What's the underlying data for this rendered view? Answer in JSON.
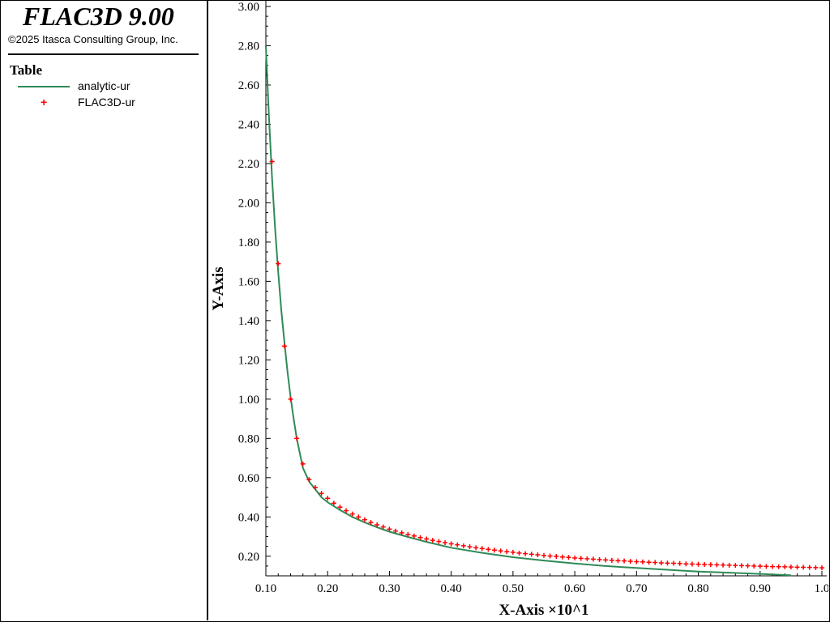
{
  "app": {
    "title": "FLAC3D 9.00",
    "copyright": "©2025 Itasca Consulting Group, Inc."
  },
  "legend": {
    "title": "Table",
    "items": [
      {
        "label": "analytic-ur",
        "style": "line",
        "color": "#2e8b57"
      },
      {
        "label": "FLAC3D-ur",
        "style": "plus",
        "color": "#ff0000"
      }
    ]
  },
  "chart_data": {
    "type": "line",
    "xlabel": "X-Axis ×10^1",
    "ylabel": "Y-Axis",
    "xlim": [
      0.1,
      1.0
    ],
    "ylim": [
      0.1,
      3.0
    ],
    "x_ticks": [
      "0.10",
      "0.20",
      "0.30",
      "0.40",
      "0.50",
      "0.60",
      "0.70",
      "0.80",
      "0.90",
      "1.0"
    ],
    "y_ticks": [
      "0.20",
      "0.40",
      "0.60",
      "0.80",
      "1.00",
      "1.20",
      "1.40",
      "1.60",
      "1.80",
      "2.00",
      "2.20",
      "2.40",
      "2.60",
      "2.80",
      "3.00"
    ],
    "grid": false,
    "series": [
      {
        "name": "analytic-ur",
        "style": "line",
        "color": "#2e8b57",
        "x": [
          0.1,
          0.105,
          0.11,
          0.115,
          0.12,
          0.125,
          0.13,
          0.135,
          0.14,
          0.145,
          0.15,
          0.16,
          0.17,
          0.18,
          0.19,
          0.2,
          0.22,
          0.24,
          0.26,
          0.28,
          0.3,
          0.33,
          0.36,
          0.4,
          0.45,
          0.5,
          0.55,
          0.6,
          0.65,
          0.7,
          0.75,
          0.8,
          0.85,
          0.9,
          0.95
        ],
        "y": [
          2.8,
          2.44,
          2.13,
          1.87,
          1.65,
          1.45,
          1.29,
          1.14,
          1.01,
          0.9,
          0.8,
          0.65,
          0.58,
          0.54,
          0.5,
          0.475,
          0.435,
          0.4,
          0.372,
          0.347,
          0.325,
          0.298,
          0.273,
          0.243,
          0.217,
          0.195,
          0.178,
          0.163,
          0.15,
          0.14,
          0.131,
          0.122,
          0.116,
          0.11,
          0.103
        ]
      },
      {
        "name": "FLAC3D-ur",
        "style": "plus",
        "color": "#ff0000",
        "x": [
          0.11,
          0.12,
          0.13,
          0.14,
          0.15,
          0.16,
          0.17,
          0.18,
          0.19,
          0.2,
          0.21,
          0.22,
          0.23,
          0.24,
          0.25,
          0.26,
          0.27,
          0.28,
          0.29,
          0.3,
          0.31,
          0.32,
          0.33,
          0.34,
          0.35,
          0.36,
          0.37,
          0.38,
          0.39,
          0.4,
          0.41,
          0.42,
          0.43,
          0.44,
          0.45,
          0.46,
          0.47,
          0.48,
          0.49,
          0.5,
          0.51,
          0.52,
          0.53,
          0.54,
          0.55,
          0.56,
          0.57,
          0.58,
          0.59,
          0.6,
          0.61,
          0.62,
          0.63,
          0.64,
          0.65,
          0.66,
          0.67,
          0.68,
          0.69,
          0.7,
          0.71,
          0.72,
          0.73,
          0.74,
          0.75,
          0.76,
          0.77,
          0.78,
          0.79,
          0.8,
          0.81,
          0.82,
          0.83,
          0.84,
          0.85,
          0.86,
          0.87,
          0.88,
          0.89,
          0.9,
          0.91,
          0.92,
          0.93,
          0.94,
          0.95,
          0.96,
          0.97,
          0.98,
          0.99,
          1.0
        ],
        "y": [
          2.21,
          1.69,
          1.27,
          1.0,
          0.8,
          0.67,
          0.59,
          0.55,
          0.52,
          0.495,
          0.47,
          0.45,
          0.432,
          0.415,
          0.4,
          0.386,
          0.372,
          0.36,
          0.349,
          0.338,
          0.328,
          0.319,
          0.311,
          0.303,
          0.295,
          0.288,
          0.281,
          0.275,
          0.269,
          0.263,
          0.258,
          0.253,
          0.248,
          0.243,
          0.239,
          0.235,
          0.231,
          0.227,
          0.223,
          0.22,
          0.216,
          0.213,
          0.21,
          0.207,
          0.204,
          0.201,
          0.199,
          0.196,
          0.194,
          0.191,
          0.189,
          0.187,
          0.185,
          0.183,
          0.181,
          0.179,
          0.177,
          0.176,
          0.174,
          0.172,
          0.171,
          0.169,
          0.168,
          0.166,
          0.165,
          0.164,
          0.163,
          0.161,
          0.16,
          0.159,
          0.158,
          0.157,
          0.156,
          0.155,
          0.154,
          0.153,
          0.152,
          0.151,
          0.15,
          0.149,
          0.148,
          0.147,
          0.1465,
          0.146,
          0.145,
          0.144,
          0.1435,
          0.143,
          0.142,
          0.141
        ]
      }
    ]
  }
}
